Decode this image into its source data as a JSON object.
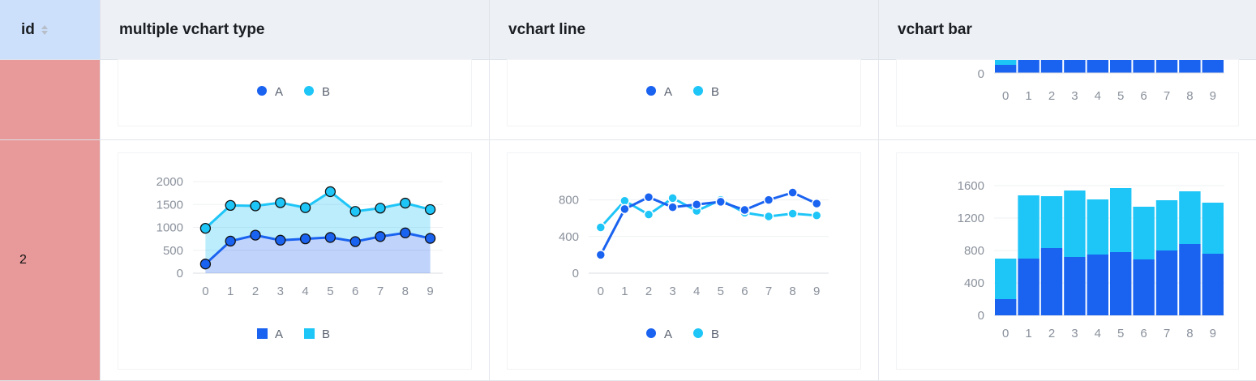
{
  "header": {
    "id_label": "id",
    "columns": [
      "multiple vchart type",
      "vchart line",
      "vchart bar"
    ]
  },
  "rows": [
    {
      "id": ""
    },
    {
      "id": "2"
    }
  ],
  "colors": {
    "A": "#1a62f0",
    "B": "#1ec5f7",
    "id_cell": "#e89a9a",
    "header_id": "#cce0fb",
    "header": "#edf1f6"
  },
  "legend": {
    "A": "A",
    "B": "B"
  },
  "chart_data": [
    {
      "type": "area",
      "column": "multiple vchart type",
      "categories": [
        "0",
        "1",
        "2",
        "3",
        "4",
        "5",
        "6",
        "7",
        "8",
        "9"
      ],
      "ylim": [
        0,
        2000
      ],
      "yticks": [
        "0",
        "500",
        "1000",
        "1500",
        "2000"
      ],
      "stacked": true,
      "legend_position": "bottom",
      "series": [
        {
          "name": "A",
          "values": [
            200,
            700,
            830,
            720,
            750,
            780,
            690,
            800,
            880,
            760
          ]
        },
        {
          "name": "B",
          "values": [
            780,
            780,
            640,
            820,
            680,
            1000,
            660,
            620,
            650,
            630
          ]
        }
      ]
    },
    {
      "type": "line",
      "column": "vchart line",
      "categories": [
        "0",
        "1",
        "2",
        "3",
        "4",
        "5",
        "6",
        "7",
        "8",
        "9"
      ],
      "ylim": [
        0,
        1000
      ],
      "yticks": [
        "0",
        "400",
        "800"
      ],
      "legend_position": "bottom",
      "series": [
        {
          "name": "A",
          "values": [
            200,
            700,
            830,
            720,
            750,
            780,
            690,
            800,
            880,
            760
          ]
        },
        {
          "name": "B",
          "values": [
            500,
            790,
            640,
            820,
            680,
            800,
            660,
            620,
            650,
            630
          ]
        }
      ]
    },
    {
      "type": "bar",
      "column": "vchart bar",
      "categories": [
        "0",
        "1",
        "2",
        "3",
        "4",
        "5",
        "6",
        "7",
        "8",
        "9"
      ],
      "ylim": [
        0,
        1700
      ],
      "yticks": [
        "0",
        "400",
        "800",
        "1200",
        "1600"
      ],
      "stacked": true,
      "series": [
        {
          "name": "A",
          "values": [
            200,
            700,
            830,
            720,
            750,
            780,
            690,
            800,
            880,
            760
          ]
        },
        {
          "name": "B",
          "values": [
            500,
            780,
            640,
            820,
            680,
            790,
            650,
            620,
            650,
            630
          ]
        }
      ]
    }
  ],
  "top_row_bar_axis": {
    "yticks": [
      "0"
    ],
    "categories": [
      "0",
      "1",
      "2",
      "3",
      "4",
      "5",
      "6",
      "7",
      "8",
      "9"
    ]
  }
}
